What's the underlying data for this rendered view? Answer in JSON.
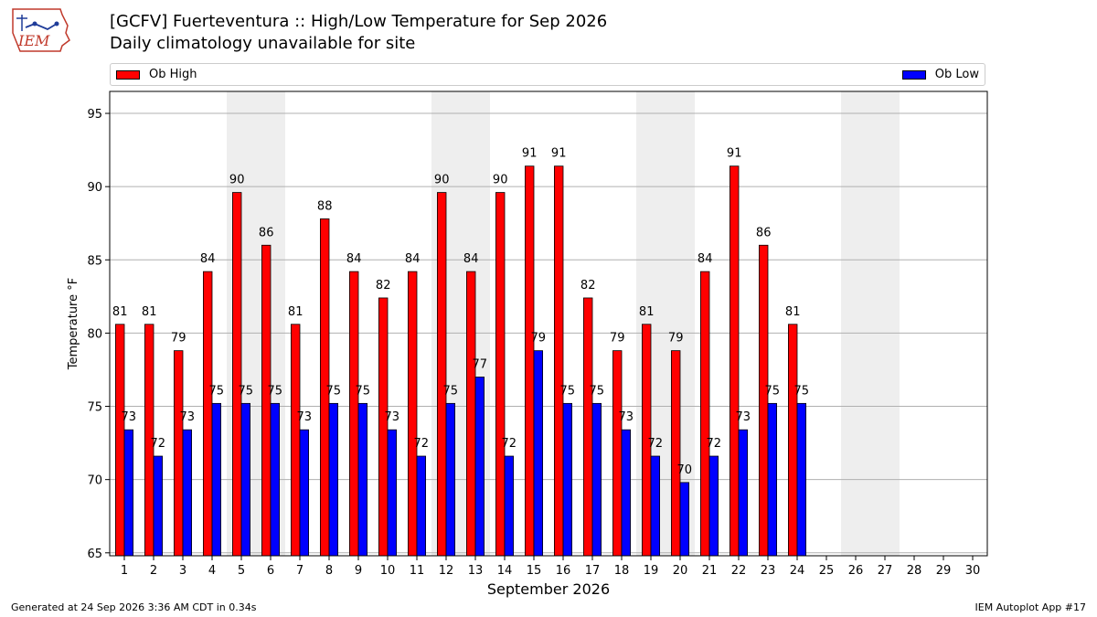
{
  "header": {
    "title": "[GCFV] Fuerteventura :: High/Low Temperature for Sep 2026",
    "subtitle": "Daily climatology unavailable for site",
    "logo_text": "IEM"
  },
  "footer": {
    "generated": "Generated at 24 Sep 2026 3:36 AM CDT in 0.34s",
    "app": "IEM Autoplot App #17"
  },
  "colors": {
    "high": "#ff0000",
    "low": "#0000ff",
    "weekend_band": "#eeeeee",
    "grid": "#b0b0b0"
  },
  "chart_data": {
    "type": "bar",
    "xlabel": "September 2026",
    "ylabel": "Temperature °F",
    "ylim": [
      64.8,
      96.5
    ],
    "yticks": [
      65,
      70,
      75,
      80,
      85,
      90,
      95
    ],
    "categories": [
      "1",
      "2",
      "3",
      "4",
      "5",
      "6",
      "7",
      "8",
      "9",
      "10",
      "11",
      "12",
      "13",
      "14",
      "15",
      "16",
      "17",
      "18",
      "19",
      "20",
      "21",
      "22",
      "23",
      "24",
      "25",
      "26",
      "27",
      "28",
      "29",
      "30"
    ],
    "weekend_days": [
      5,
      6,
      12,
      13,
      19,
      20,
      26,
      27
    ],
    "grid": "horizontal",
    "legend_position": "top",
    "series": [
      {
        "name": "Ob High",
        "color": "#ff0000",
        "values": [
          80.6,
          80.6,
          78.8,
          84.2,
          89.6,
          86.0,
          80.6,
          87.8,
          84.2,
          82.4,
          84.2,
          89.6,
          84.2,
          89.6,
          91.4,
          91.4,
          82.4,
          78.8,
          80.6,
          78.8,
          84.2,
          91.4,
          86.0,
          80.6,
          null,
          null,
          null,
          null,
          null,
          null
        ],
        "labels": [
          "81",
          "81",
          "79",
          "84",
          "90",
          "86",
          "81",
          "88",
          "84",
          "82",
          "84",
          "90",
          "84",
          "90",
          "91",
          "91",
          "82",
          "79",
          "81",
          "79",
          "84",
          "91",
          "86",
          "81",
          "",
          "",
          "",
          "",
          "",
          ""
        ]
      },
      {
        "name": "Ob Low",
        "color": "#0000ff",
        "values": [
          73.4,
          71.6,
          73.4,
          75.2,
          75.2,
          75.2,
          73.4,
          75.2,
          75.2,
          73.4,
          71.6,
          75.2,
          77.0,
          71.6,
          78.8,
          75.2,
          75.2,
          73.4,
          71.6,
          69.8,
          71.6,
          73.4,
          75.2,
          75.2,
          null,
          null,
          null,
          null,
          null,
          null
        ],
        "labels": [
          "73",
          "72",
          "73",
          "75",
          "75",
          "75",
          "73",
          "75",
          "75",
          "73",
          "72",
          "75",
          "77",
          "72",
          "79",
          "75",
          "75",
          "73",
          "72",
          "70",
          "72",
          "73",
          "75",
          "75",
          "",
          "",
          "",
          "",
          "",
          ""
        ]
      }
    ]
  }
}
